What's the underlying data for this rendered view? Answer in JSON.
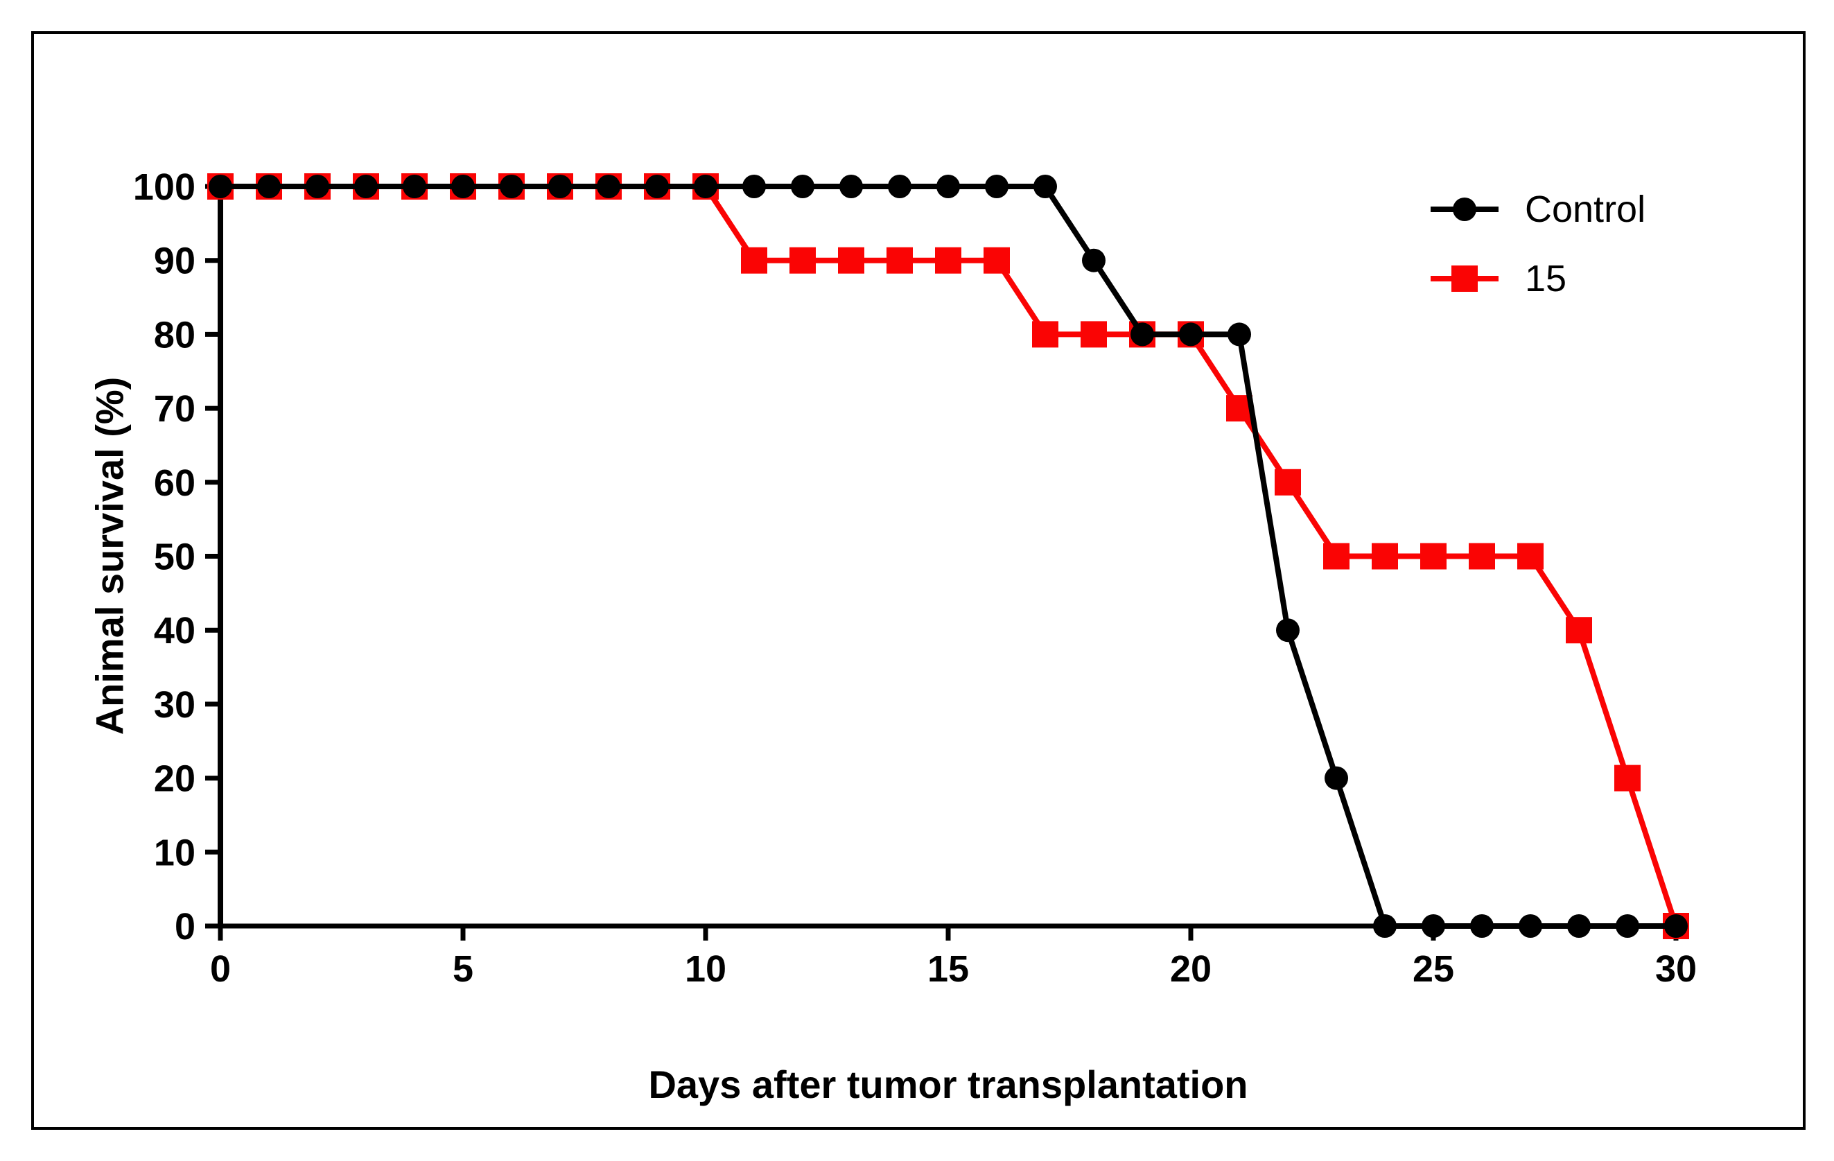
{
  "figure": {
    "background_color": "#ffffff",
    "border_color": "#000000"
  },
  "chart_data": {
    "type": "line",
    "title": "",
    "xlabel": "Days after tumor transplantation",
    "ylabel": "Animal survival (%)",
    "xlim": [
      0,
      30
    ],
    "ylim": [
      0,
      100
    ],
    "x_ticks": [
      0,
      5,
      10,
      15,
      20,
      25,
      30
    ],
    "y_ticks": [
      0,
      10,
      20,
      30,
      40,
      50,
      60,
      70,
      80,
      90,
      100
    ],
    "grid": false,
    "legend_position": "top-right",
    "x": [
      0,
      1,
      2,
      3,
      4,
      5,
      6,
      7,
      8,
      9,
      10,
      11,
      12,
      13,
      14,
      15,
      16,
      17,
      18,
      19,
      20,
      21,
      22,
      23,
      24,
      25,
      26,
      27,
      28,
      29,
      30
    ],
    "series": [
      {
        "name": "Control",
        "color": "#000000",
        "marker": "circle",
        "values": [
          100,
          100,
          100,
          100,
          100,
          100,
          100,
          100,
          100,
          100,
          100,
          100,
          100,
          100,
          100,
          100,
          100,
          100,
          90,
          80,
          80,
          80,
          40,
          20,
          0,
          0,
          0,
          0,
          0,
          0,
          0
        ]
      },
      {
        "name": "15",
        "color": "#fa0404",
        "marker": "square",
        "values": [
          100,
          100,
          100,
          100,
          100,
          100,
          100,
          100,
          100,
          100,
          100,
          90,
          90,
          90,
          90,
          90,
          90,
          80,
          80,
          80,
          80,
          70,
          60,
          50,
          50,
          50,
          50,
          50,
          40,
          20,
          0
        ]
      }
    ]
  },
  "legend": {
    "items": [
      {
        "label": "Control",
        "color": "#000000",
        "marker": "circle"
      },
      {
        "label": "15",
        "color": "#fa0404",
        "marker": "square"
      }
    ]
  },
  "axes_style": {
    "axis_color": "#000000",
    "tick_label_color": "#000000"
  }
}
